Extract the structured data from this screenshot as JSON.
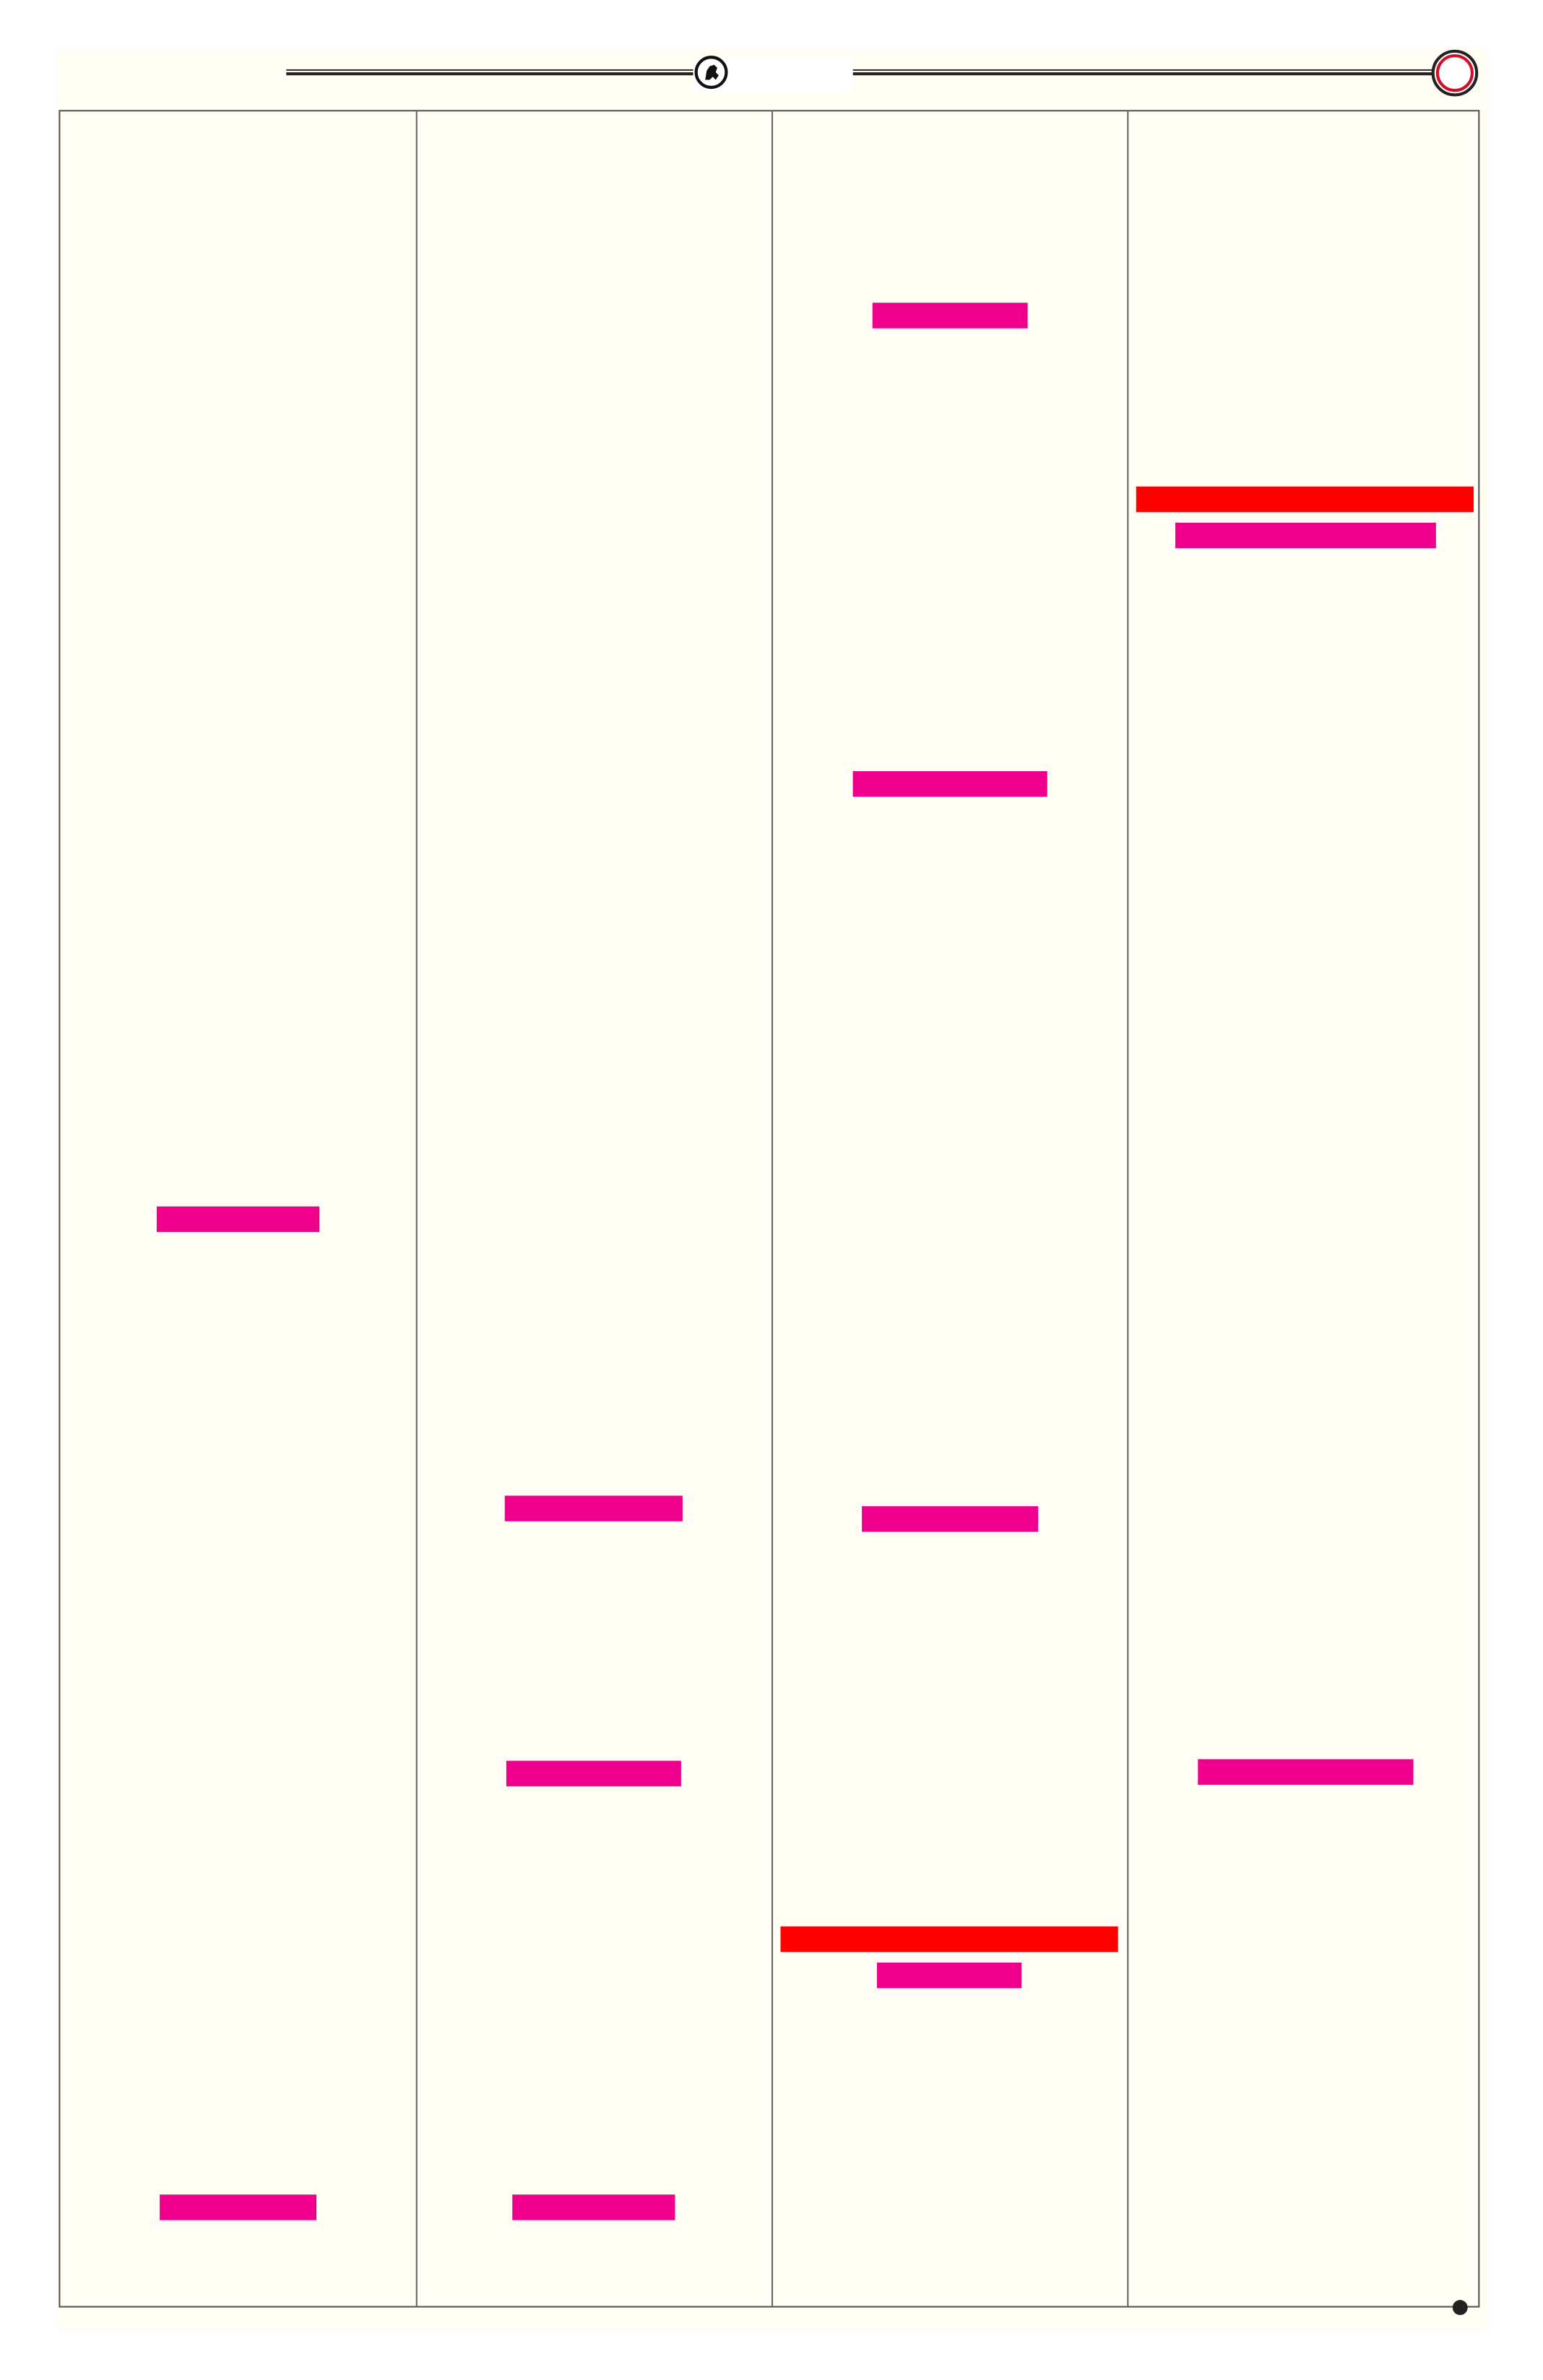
{
  "document": {
    "columns": 4,
    "header": {
      "logo_icon": "emblem-icon",
      "page_marker_icon": "circle-ring-icon"
    },
    "footer": {
      "marker_icon": "bullet-dot-icon"
    },
    "redactions": [
      {
        "column": 3,
        "color": "magenta"
      },
      {
        "column": 4,
        "color": "red"
      },
      {
        "column": 4,
        "color": "magenta"
      },
      {
        "column": 3,
        "color": "magenta"
      },
      {
        "column": 1,
        "color": "magenta"
      },
      {
        "column": 2,
        "color": "magenta"
      },
      {
        "column": 3,
        "color": "magenta"
      },
      {
        "column": 2,
        "color": "magenta"
      },
      {
        "column": 4,
        "color": "magenta"
      },
      {
        "column": 3,
        "color": "red"
      },
      {
        "column": 3,
        "color": "magenta"
      },
      {
        "column": 1,
        "color": "magenta"
      },
      {
        "column": 2,
        "color": "magenta"
      }
    ]
  },
  "colors": {
    "page_background": "#fffdf4",
    "magenta": "#ee008c",
    "red": "#ff0000",
    "rule": "#555555",
    "ring_accent": "#d0102a"
  }
}
